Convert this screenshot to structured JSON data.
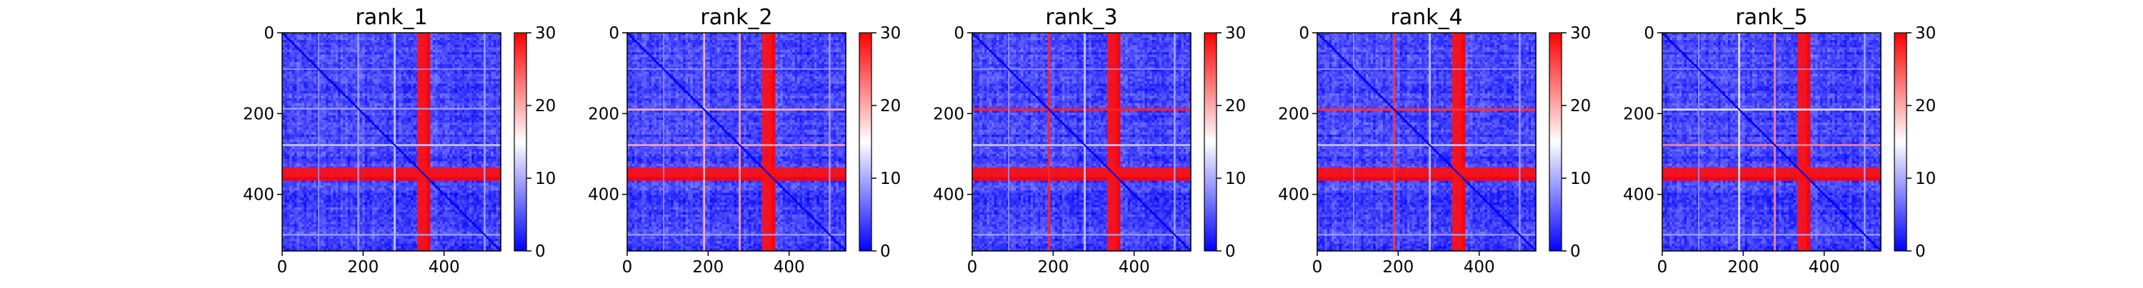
{
  "figure": {
    "background": "#ffffff"
  },
  "colormap": {
    "name": "bwr",
    "stops": [
      "#0000ff",
      "#ffffff",
      "#ff0000"
    ],
    "range": [
      0,
      30
    ],
    "ticks": [
      0,
      10,
      20,
      30
    ],
    "tick_labels": [
      "0",
      "10",
      "20",
      "30"
    ]
  },
  "chart_data": [
    {
      "type": "heatmap",
      "title": "rank_1",
      "n": 540,
      "xlim": [
        0,
        540
      ],
      "ylim": [
        540,
        0
      ],
      "xticks": [
        0,
        200,
        400
      ],
      "xtick_labels": [
        "0",
        "200",
        "400"
      ],
      "yticks": [
        0,
        200,
        400
      ],
      "ytick_labels": [
        "0",
        "200",
        "400"
      ],
      "vmin": 0,
      "vmax": 30,
      "colorbar_ticks": [
        "0",
        "10",
        "20",
        "30"
      ],
      "diagonal_value": 0,
      "background_value": 4,
      "bands": [
        {
          "center": 358,
          "width": 16,
          "value": 30
        },
        {
          "center": 345,
          "width": 24,
          "value": 29
        },
        {
          "center": 278,
          "width": 5,
          "value": 12
        },
        {
          "center": 188,
          "width": 4,
          "value": 10
        },
        {
          "center": 90,
          "width": 3,
          "value": 9
        },
        {
          "center": 500,
          "width": 4,
          "value": 10
        }
      ]
    },
    {
      "type": "heatmap",
      "title": "rank_2",
      "n": 540,
      "xlim": [
        0,
        540
      ],
      "ylim": [
        540,
        0
      ],
      "xticks": [
        0,
        200,
        400
      ],
      "xtick_labels": [
        "0",
        "200",
        "400"
      ],
      "yticks": [
        0,
        200,
        400
      ],
      "ytick_labels": [
        "0",
        "200",
        "400"
      ],
      "vmin": 0,
      "vmax": 30,
      "colorbar_ticks": [
        "0",
        "10",
        "20",
        "30"
      ],
      "diagonal_value": 0,
      "background_value": 4,
      "bands": [
        {
          "center": 358,
          "width": 16,
          "value": 30
        },
        {
          "center": 345,
          "width": 24,
          "value": 29
        },
        {
          "center": 278,
          "width": 5,
          "value": 20
        },
        {
          "center": 190,
          "width": 5,
          "value": 19
        },
        {
          "center": 90,
          "width": 3,
          "value": 9
        },
        {
          "center": 500,
          "width": 4,
          "value": 10
        }
      ]
    },
    {
      "type": "heatmap",
      "title": "rank_3",
      "n": 540,
      "xlim": [
        0,
        540
      ],
      "ylim": [
        540,
        0
      ],
      "xticks": [
        0,
        200,
        400
      ],
      "xtick_labels": [
        "0",
        "200",
        "400"
      ],
      "yticks": [
        0,
        200,
        400
      ],
      "ytick_labels": [
        "0",
        "200",
        "400"
      ],
      "vmin": 0,
      "vmax": 30,
      "colorbar_ticks": [
        "0",
        "10",
        "20",
        "30"
      ],
      "diagonal_value": 0,
      "background_value": 4,
      "bands": [
        {
          "center": 358,
          "width": 16,
          "value": 30
        },
        {
          "center": 345,
          "width": 24,
          "value": 29
        },
        {
          "center": 190,
          "width": 6,
          "value": 28
        },
        {
          "center": 278,
          "width": 5,
          "value": 12
        },
        {
          "center": 90,
          "width": 3,
          "value": 9
        },
        {
          "center": 500,
          "width": 4,
          "value": 10
        }
      ]
    },
    {
      "type": "heatmap",
      "title": "rank_4",
      "n": 540,
      "xlim": [
        0,
        540
      ],
      "ylim": [
        540,
        0
      ],
      "xticks": [
        0,
        200,
        400
      ],
      "xtick_labels": [
        "0",
        "200",
        "400"
      ],
      "yticks": [
        0,
        200,
        400
      ],
      "ytick_labels": [
        "0",
        "200",
        "400"
      ],
      "vmin": 0,
      "vmax": 30,
      "colorbar_ticks": [
        "0",
        "10",
        "20",
        "30"
      ],
      "diagonal_value": 0,
      "background_value": 4,
      "bands": [
        {
          "center": 358,
          "width": 16,
          "value": 30
        },
        {
          "center": 345,
          "width": 24,
          "value": 29
        },
        {
          "center": 190,
          "width": 6,
          "value": 27
        },
        {
          "center": 278,
          "width": 5,
          "value": 12
        },
        {
          "center": 90,
          "width": 3,
          "value": 9
        },
        {
          "center": 500,
          "width": 4,
          "value": 10
        }
      ]
    },
    {
      "type": "heatmap",
      "title": "rank_5",
      "n": 540,
      "xlim": [
        0,
        540
      ],
      "ylim": [
        540,
        0
      ],
      "xticks": [
        0,
        200,
        400
      ],
      "xtick_labels": [
        "0",
        "200",
        "400"
      ],
      "yticks": [
        0,
        200,
        400
      ],
      "ytick_labels": [
        "0",
        "200",
        "400"
      ],
      "vmin": 0,
      "vmax": 30,
      "colorbar_ticks": [
        "0",
        "10",
        "20",
        "30"
      ],
      "diagonal_value": 0,
      "background_value": 4,
      "bands": [
        {
          "center": 358,
          "width": 16,
          "value": 30
        },
        {
          "center": 345,
          "width": 24,
          "value": 29
        },
        {
          "center": 278,
          "width": 5,
          "value": 22
        },
        {
          "center": 190,
          "width": 5,
          "value": 14
        },
        {
          "center": 90,
          "width": 3,
          "value": 9
        },
        {
          "center": 500,
          "width": 4,
          "value": 10
        }
      ]
    }
  ]
}
